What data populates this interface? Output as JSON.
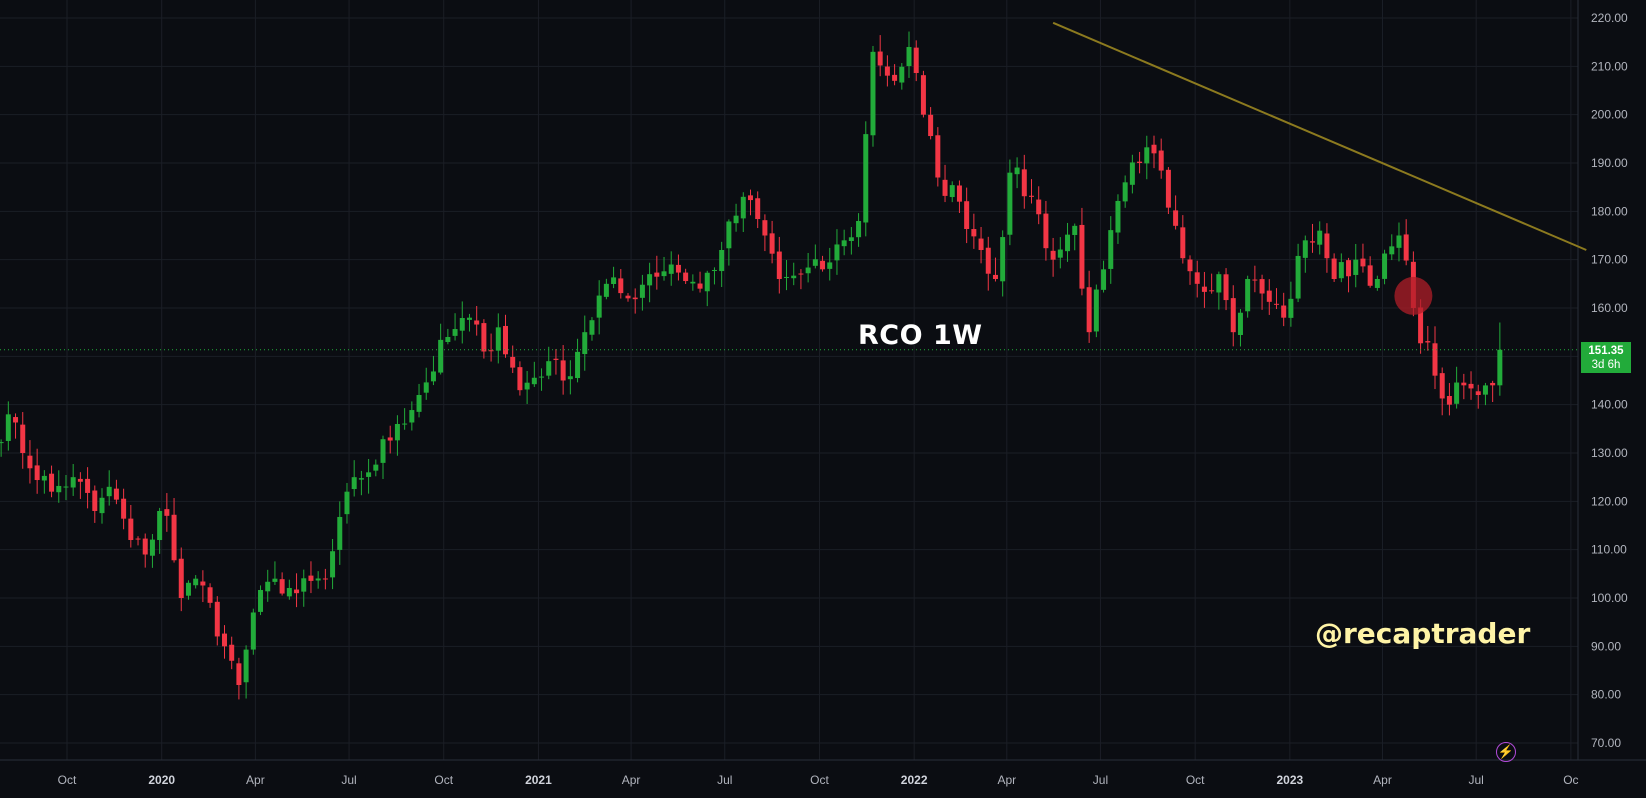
{
  "chart_data": {
    "type": "candlestick",
    "title": "RCO 1W",
    "interval": "1W",
    "watermark": "@recaptrader",
    "ylim": [
      65,
      223
    ],
    "yticks": [
      "220.00",
      "210.00",
      "200.00",
      "190.00",
      "180.00",
      "170.00",
      "160.00",
      "150.00",
      "140.00",
      "130.00",
      "120.00",
      "110.00",
      "100.00",
      "90.00",
      "80.00",
      "70.00"
    ],
    "xticks": [
      {
        "label": "Oct",
        "year_label": false
      },
      {
        "label": "2020",
        "year_label": true
      },
      {
        "label": "Apr",
        "year_label": false
      },
      {
        "label": "Jul",
        "year_label": false
      },
      {
        "label": "Oct",
        "year_label": false
      },
      {
        "label": "2021",
        "year_label": true
      },
      {
        "label": "Apr",
        "year_label": false
      },
      {
        "label": "Jul",
        "year_label": false
      },
      {
        "label": "Oct",
        "year_label": false
      },
      {
        "label": "2022",
        "year_label": true
      },
      {
        "label": "Apr",
        "year_label": false
      },
      {
        "label": "Jul",
        "year_label": false
      },
      {
        "label": "Oct",
        "year_label": false
      },
      {
        "label": "2023",
        "year_label": true
      },
      {
        "label": "Apr",
        "year_label": false
      },
      {
        "label": "Jul",
        "year_label": false
      },
      {
        "label": "Oc",
        "year_label": false
      }
    ],
    "anchors": [
      [
        "2019-07-22",
        132
      ],
      [
        "2019-08-05",
        138
      ],
      [
        "2019-08-19",
        130
      ],
      [
        "2019-09-16",
        122
      ],
      [
        "2019-10-07",
        125
      ],
      [
        "2019-10-28",
        118
      ],
      [
        "2019-11-11",
        123
      ],
      [
        "2019-12-02",
        112
      ],
      [
        "2019-12-16",
        109
      ],
      [
        "2019-12-30",
        118
      ],
      [
        "2020-01-06",
        117
      ],
      [
        "2020-01-20",
        100
      ],
      [
        "2020-02-03",
        104
      ],
      [
        "2020-02-17",
        99
      ],
      [
        "2020-03-02",
        90
      ],
      [
        "2020-03-16",
        82
      ],
      [
        "2020-03-30",
        97
      ],
      [
        "2020-04-20",
        104
      ],
      [
        "2020-05-11",
        101
      ],
      [
        "2020-06-08",
        104
      ],
      [
        "2020-07-06",
        125
      ],
      [
        "2020-07-20",
        126
      ],
      [
        "2020-08-17",
        136
      ],
      [
        "2020-09-07",
        142
      ],
      [
        "2020-10-05",
        154
      ],
      [
        "2020-10-26",
        158
      ],
      [
        "2020-11-09",
        151
      ],
      [
        "2020-11-23",
        156
      ],
      [
        "2020-12-14",
        143
      ],
      [
        "2021-01-11",
        149
      ],
      [
        "2021-01-25",
        145
      ],
      [
        "2021-02-15",
        155
      ],
      [
        "2021-03-08",
        165
      ],
      [
        "2021-03-29",
        162
      ],
      [
        "2021-04-19",
        167
      ],
      [
        "2021-05-10",
        169
      ],
      [
        "2021-06-07",
        164
      ],
      [
        "2021-06-28",
        172
      ],
      [
        "2021-07-19",
        183
      ],
      [
        "2021-08-09",
        175
      ],
      [
        "2021-08-23",
        166
      ],
      [
        "2021-09-13",
        167
      ],
      [
        "2021-10-04",
        168
      ],
      [
        "2021-10-25",
        174
      ],
      [
        "2021-11-08",
        178
      ],
      [
        "2021-11-22",
        213
      ],
      [
        "2021-12-13",
        207
      ],
      [
        "2021-12-27",
        214
      ],
      [
        "2022-01-10",
        200
      ],
      [
        "2022-01-24",
        187
      ],
      [
        "2022-02-14",
        182
      ],
      [
        "2022-03-07",
        172
      ],
      [
        "2022-03-21",
        166
      ],
      [
        "2022-04-04",
        188
      ],
      [
        "2022-04-25",
        183
      ],
      [
        "2022-05-16",
        170
      ],
      [
        "2022-06-06",
        177
      ],
      [
        "2022-06-20",
        155
      ],
      [
        "2022-07-04",
        168
      ],
      [
        "2022-07-25",
        186
      ],
      [
        "2022-08-08",
        190
      ],
      [
        "2022-08-22",
        192
      ],
      [
        "2022-09-12",
        177
      ],
      [
        "2022-10-03",
        165
      ],
      [
        "2022-10-24",
        167
      ],
      [
        "2022-11-07",
        155
      ],
      [
        "2022-11-21",
        166
      ],
      [
        "2022-12-05",
        163
      ],
      [
        "2022-12-26",
        158
      ],
      [
        "2023-01-16",
        174
      ],
      [
        "2023-01-30",
        176
      ],
      [
        "2023-02-13",
        166
      ],
      [
        "2023-03-06",
        170
      ],
      [
        "2023-03-27",
        166
      ],
      [
        "2023-04-17",
        175
      ],
      [
        "2023-05-01",
        160
      ],
      [
        "2023-05-22",
        146
      ],
      [
        "2023-06-05",
        140
      ],
      [
        "2023-06-19",
        144
      ],
      [
        "2023-07-03",
        142
      ],
      [
        "2023-07-17",
        144
      ],
      [
        "2023-07-24",
        151.35
      ]
    ],
    "trendline": {
      "start": [
        "2022-05-16",
        219
      ],
      "end": [
        "2023-10-16",
        172
      ]
    },
    "marker": {
      "date": "2023-05-01",
      "price": 162.5
    },
    "last_price": {
      "value": "151.35",
      "countdown": "3d 6h"
    },
    "grid": true,
    "price_axis": "right"
  },
  "colors": {
    "background": "#0b0d12",
    "up": "#22ab3a",
    "down": "#f23645",
    "trendline": "#8c7a1f",
    "marker": "#b01e28",
    "watermark": "#fff4a6",
    "grid": "#1b1e26",
    "axis_text": "#b2b5be"
  },
  "icons": {
    "flash": "lightning-icon"
  }
}
